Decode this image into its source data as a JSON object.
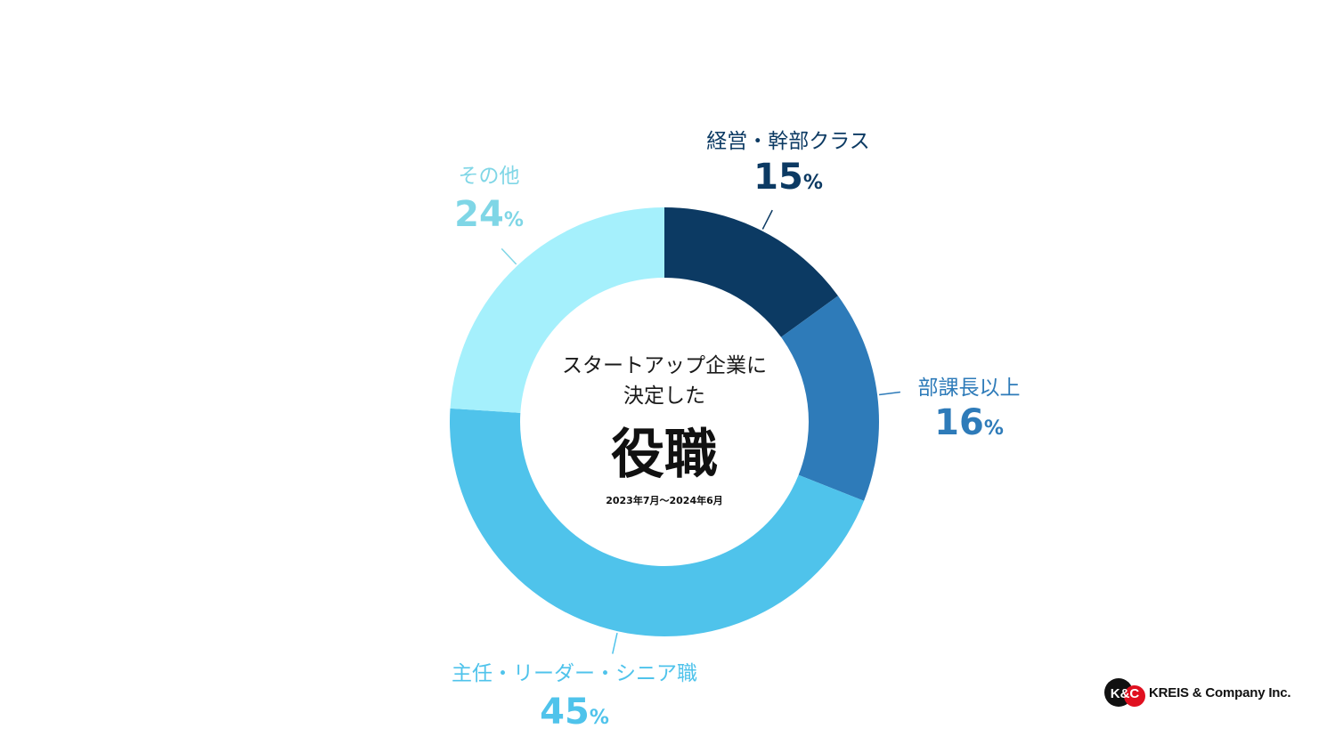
{
  "center": {
    "subtitle_line1": "スタートアップ企業に",
    "subtitle_line2": "決定した",
    "title": "役職",
    "period": "2023年7月〜2024年6月"
  },
  "chart_data": {
    "type": "pie",
    "donut": true,
    "unit": "%",
    "start_angle_deg": 0,
    "direction": "clockwise",
    "slices": [
      {
        "label": "経営・幹部クラス",
        "value": 15,
        "display": "15",
        "color": "#0c3a63",
        "label_color": "#0c3a63"
      },
      {
        "label": "部課長以上",
        "value": 16,
        "display": "16",
        "color": "#2e7bb9",
        "label_color": "#2e7bb9"
      },
      {
        "label": "主任・リーダー・シニア職",
        "value": 45,
        "display": "45",
        "color": "#4fc3eb",
        "label_color": "#4fc3eb"
      },
      {
        "label": "その他",
        "value": 24,
        "display": "24",
        "color": "#a5f0fc",
        "label_color": "#7fd6e6"
      }
    ]
  },
  "logo": {
    "mark_text": "K&C",
    "company": "KREIS & Company Inc.",
    "mark_colors": [
      "#111111",
      "#e01020"
    ]
  }
}
